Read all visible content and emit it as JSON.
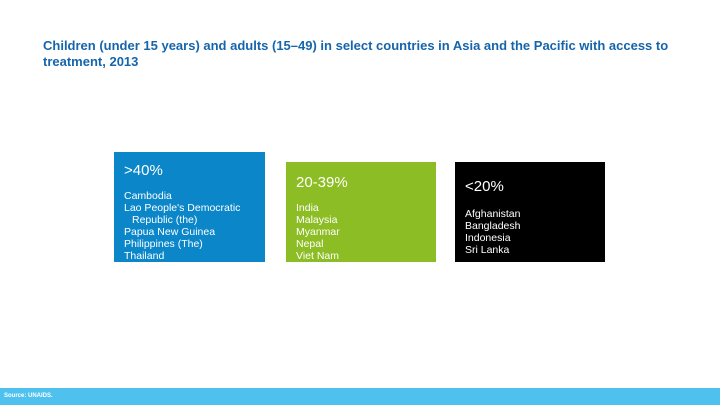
{
  "title": "Children (under 15 years) and adults (15–49) in select countries in Asia and the Pacific with access to treatment, 2013",
  "cards": [
    {
      "heading": ">40%",
      "color": "#0a86c9",
      "items": [
        "Cambodia",
        "Lao People's Democratic",
        "Republic (the)",
        "Papua New Guinea",
        "Philippines (The)",
        "Thailand"
      ]
    },
    {
      "heading": "20-39%",
      "color": "#8cbd25",
      "items": [
        "India",
        "Malaysia",
        "Myanmar",
        "Nepal",
        "Viet Nam"
      ]
    },
    {
      "heading": "<20%",
      "color": "#000000",
      "items": [
        "Afghanistan",
        "Bangladesh",
        "Indonesia",
        "Sri Lanka"
      ]
    }
  ],
  "footer": {
    "source": "Source: UNAIDS.",
    "color": "#4ec1ee"
  }
}
